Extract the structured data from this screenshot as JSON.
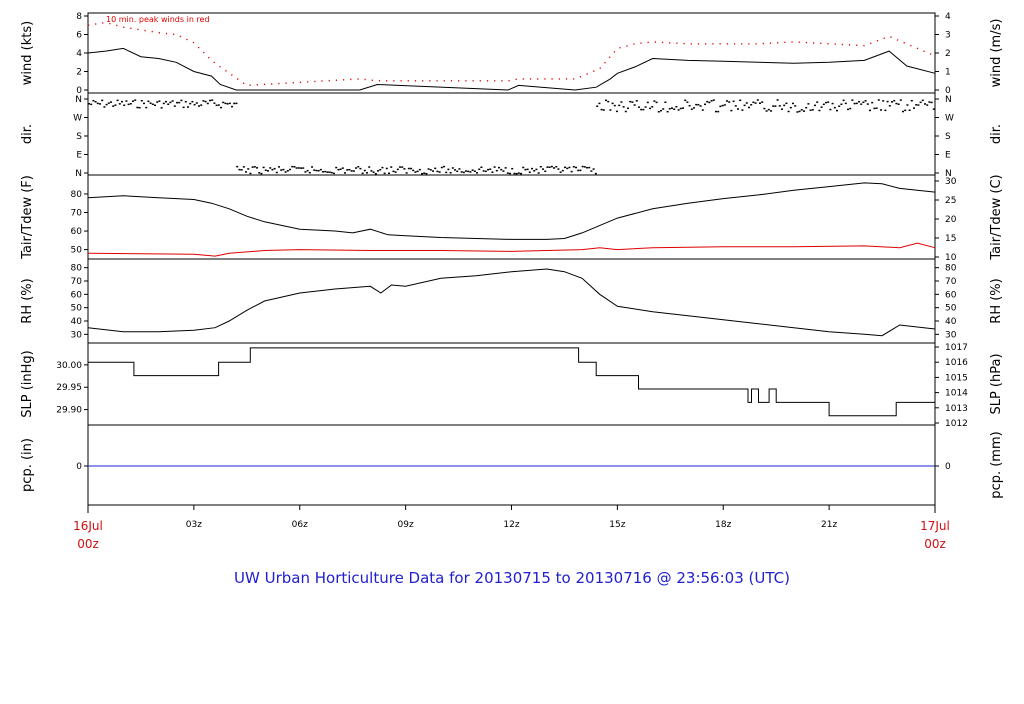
{
  "title": "UW Urban Horticulture Data for 20130715  to  20130716 @ 23:56:03  (UTC)",
  "colors": {
    "title": "#2020d0",
    "start_end_labels": "#d01010",
    "peak": "#e00000",
    "tdew": "#e00000",
    "precip": "#2020d0",
    "line": "#000000"
  },
  "x_axis": {
    "start_label": [
      "16Jul",
      "00z"
    ],
    "end_label": [
      "17Jul",
      "00z"
    ],
    "ticks": [
      "03z",
      "06z",
      "09z",
      "12z",
      "15z",
      "18z",
      "21z"
    ],
    "tick_hours": [
      3,
      6,
      9,
      12,
      15,
      18,
      21
    ],
    "range_hours": [
      0,
      24
    ]
  },
  "chart_data": [
    {
      "id": "wind",
      "type": "line",
      "ylabel": "wind (kts)",
      "ylabel_right": "wind (m/s)",
      "left_ticks": [
        "0",
        "2",
        "4",
        "6",
        "8"
      ],
      "right_ticks": [
        "0",
        "1",
        "2",
        "3",
        "4"
      ],
      "right_tick_values": [
        0,
        1,
        2,
        3,
        4
      ],
      "ylim": [
        0,
        8
      ],
      "annotation": "10 min. peak winds in red",
      "series": [
        {
          "role": "wind",
          "x": [
            0,
            0.5,
            1,
            1.5,
            2,
            2.5,
            3,
            3.5,
            3.75,
            4.2,
            7.7,
            8.2,
            11.9,
            12.2,
            13.8,
            14.4,
            14.8,
            15,
            15.5,
            16,
            17,
            18,
            19,
            20,
            21,
            22,
            22.7,
            23.2,
            24
          ],
          "y": [
            4,
            4.2,
            4.5,
            3.6,
            3.4,
            3,
            2,
            1.5,
            0.6,
            0,
            0,
            0.6,
            0,
            0.5,
            0,
            0.3,
            1.2,
            1.8,
            2.5,
            3.4,
            3.2,
            3.1,
            3,
            2.9,
            3,
            3.2,
            4.2,
            2.6,
            1.8
          ]
        },
        {
          "role": "peak",
          "x": [
            0,
            0.5,
            1,
            1.5,
            2,
            2.5,
            3,
            3.5,
            3.75,
            4.5,
            7.7,
            8.2,
            11.9,
            12.2,
            13.8,
            14.5,
            15,
            15.5,
            16,
            17,
            18,
            19,
            20,
            21,
            22,
            22.7,
            23.5,
            24
          ],
          "y": [
            7,
            7.3,
            6.8,
            6.5,
            6.2,
            6,
            5.1,
            3.2,
            2.5,
            0.5,
            1.2,
            1,
            1,
            1.2,
            1.2,
            2.3,
            4.5,
            5,
            5.2,
            5,
            5,
            5,
            5.2,
            5,
            4.8,
            5.8,
            4.5,
            3.7
          ]
        }
      ]
    },
    {
      "id": "dir",
      "type": "scatter",
      "ylabel": "dir.",
      "ylabel_right": "dir.",
      "left_ticks": [
        "N",
        "W",
        "S",
        "E",
        "N"
      ],
      "right_ticks": [
        "N",
        "W",
        "S",
        "E",
        "N"
      ],
      "ylim": [
        0,
        360
      ],
      "series": [
        {
          "role": "northerly_band",
          "x": [
            0,
            4.2
          ],
          "y": [
            320,
            360
          ]
        },
        {
          "role": "calm_band",
          "x": [
            4.2,
            14.4
          ],
          "y": [
            0,
            35
          ]
        },
        {
          "role": "northerly_band",
          "x": [
            14.4,
            24
          ],
          "y": [
            300,
            360
          ]
        }
      ]
    },
    {
      "id": "temp",
      "type": "line",
      "ylabel": "Tair/Tdew (F)",
      "ylabel_right": "Tair/Tdew (C)",
      "left_ticks": [
        "50",
        "60",
        "70",
        "80"
      ],
      "right_ticks": [
        "10",
        "15",
        "20",
        "25",
        "30"
      ],
      "right_tick_values": [
        10,
        15,
        20,
        25,
        30
      ],
      "ylim": [
        46,
        87
      ],
      "series": [
        {
          "role": "tair",
          "x": [
            0,
            1,
            2,
            3,
            3.5,
            4,
            4.5,
            5,
            6,
            7,
            7.5,
            8,
            8.5,
            9,
            10,
            11,
            12,
            13,
            13.5,
            14,
            15,
            16,
            17,
            18,
            19,
            20,
            21,
            22,
            22.5,
            23,
            24
          ],
          "y": [
            78,
            79,
            78,
            77,
            75,
            72,
            68,
            65,
            61,
            60,
            59,
            61,
            58,
            57.5,
            56.5,
            56,
            55.5,
            55.5,
            56,
            59,
            67,
            72,
            75,
            77.5,
            79.5,
            82,
            84,
            86,
            85.5,
            83,
            81
          ]
        },
        {
          "role": "tdew",
          "x": [
            0,
            3,
            3.6,
            4,
            5,
            6,
            8,
            10,
            12,
            14,
            14.5,
            15,
            16,
            18,
            20,
            22,
            23,
            23.5,
            24
          ],
          "y": [
            48,
            47.5,
            46.5,
            48,
            49.5,
            50,
            49.5,
            49.5,
            49,
            50,
            51,
            50,
            51,
            51.5,
            51.5,
            52,
            51,
            53.5,
            51
          ]
        }
      ]
    },
    {
      "id": "rh",
      "type": "line",
      "ylabel": "RH (%)",
      "ylabel_right": "RH (%)",
      "left_ticks": [
        "30",
        "40",
        "50",
        "60",
        "70",
        "80"
      ],
      "right_ticks": [
        "30",
        "40",
        "50",
        "60",
        "70",
        "80"
      ],
      "ylim": [
        25,
        82
      ],
      "series": [
        {
          "role": "rh",
          "x": [
            0,
            1,
            2,
            3,
            3.6,
            4,
            4.5,
            5,
            6,
            7,
            8,
            8.3,
            8.6,
            9,
            10,
            11,
            12,
            13,
            13.5,
            14,
            14.5,
            15,
            16,
            17,
            18,
            19,
            20,
            21,
            22,
            22.5,
            23,
            24
          ],
          "y": [
            35,
            32,
            32,
            33,
            35,
            40,
            48,
            55,
            61,
            64,
            66,
            61,
            67,
            66,
            72,
            74,
            77,
            79,
            77,
            72,
            60,
            51,
            47,
            44,
            41,
            38,
            35,
            32,
            30,
            29,
            37,
            34
          ]
        }
      ]
    },
    {
      "id": "slp",
      "type": "line",
      "ylabel": "SLP (inHg)",
      "ylabel_right": "SLP (hPa)",
      "left_ticks": [
        "29.90",
        "29.95",
        "30.00"
      ],
      "left_tick_values": [
        29.9,
        29.95,
        30.0
      ],
      "right_ticks": [
        "1012",
        "1013",
        "1014",
        "1015",
        "1016",
        "1017"
      ],
      "right_tick_values": [
        1012,
        1013,
        1014,
        1015,
        1016,
        1017
      ],
      "ylim": [
        29.87,
        30.04
      ],
      "series": [
        {
          "role": "slp",
          "x": [
            0,
            1.3,
            1.3,
            3.7,
            3.7,
            4.6,
            4.6,
            13.9,
            13.9,
            14.4,
            14.4,
            15.6,
            15.6,
            18.7,
            18.7,
            18.8,
            18.8,
            19,
            19,
            19.3,
            19.3,
            19.5,
            19.5,
            21,
            21,
            22.9,
            22.9,
            24
          ],
          "y": [
            30.006,
            30.006,
            29.976,
            29.976,
            30.006,
            30.006,
            30.038,
            30.038,
            30.006,
            30.006,
            29.976,
            29.976,
            29.946,
            29.946,
            29.916,
            29.916,
            29.946,
            29.946,
            29.916,
            29.916,
            29.946,
            29.946,
            29.916,
            29.916,
            29.886,
            29.886,
            29.916,
            29.916
          ]
        }
      ]
    },
    {
      "id": "pcp",
      "type": "line",
      "ylabel": "pcp. (in)",
      "ylabel_right": "pcp. (mm)",
      "left_ticks": [
        "0"
      ],
      "right_ticks": [
        "0"
      ],
      "ylim": [
        -1,
        1
      ],
      "series": [
        {
          "role": "precip",
          "x": [
            0,
            24
          ],
          "y": [
            0,
            0
          ]
        }
      ]
    }
  ]
}
